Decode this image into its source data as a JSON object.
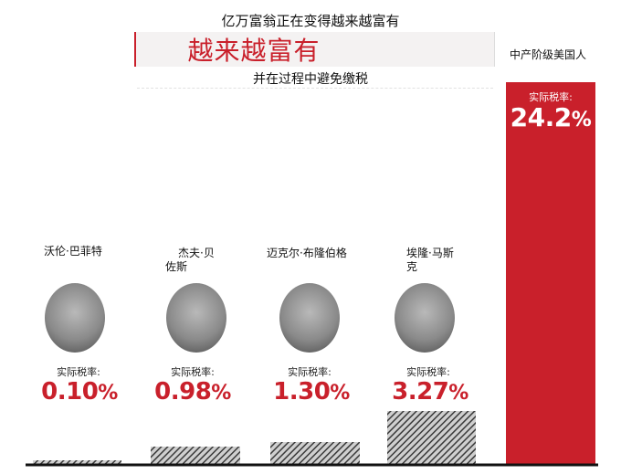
{
  "header": {
    "top_title": "亿万富翁正在变得越来越富有",
    "banner": "越来越富有",
    "subtitle": "并在过程中避免缴税"
  },
  "people": [
    {
      "name": "沃伦·巴菲特",
      "rate_label": "实际税率:",
      "rate_number": "0.10",
      "rate_unit": "%"
    },
    {
      "name": "杰夫·贝佐斯",
      "rate_label": "实际税率:",
      "rate_number": "0.98",
      "rate_unit": "%"
    },
    {
      "name": "迈克尔·布隆伯格",
      "rate_label": "实际税率:",
      "rate_number": "1.30",
      "rate_unit": "%"
    },
    {
      "name": "埃隆·马斯克",
      "rate_label": "实际税率:",
      "rate_number": "3.27",
      "rate_unit": "%"
    }
  ],
  "middle_class": {
    "name": "中产阶级美国人",
    "rate_label": "实际税率:",
    "rate_number": "24.2",
    "rate_unit": "%"
  },
  "chart_data": {
    "type": "bar",
    "categories": [
      "沃伦·巴菲特",
      "杰夫·贝佐斯",
      "迈克尔·布隆伯格",
      "埃隆·马斯克",
      "中产阶级美国人"
    ],
    "values": [
      0.1,
      0.98,
      1.3,
      3.27,
      24.2
    ],
    "unit": "%",
    "title": "亿万富翁正在变得越来越富有",
    "subtitle": "越来越富有 并在过程中避免缴税",
    "ylim": [
      0,
      24.2
    ],
    "grid": false,
    "colors": {
      "billionaire_bar": "#4a4a4a",
      "middle_class_bar": "#c9202b",
      "accent": "#c9202b"
    }
  }
}
